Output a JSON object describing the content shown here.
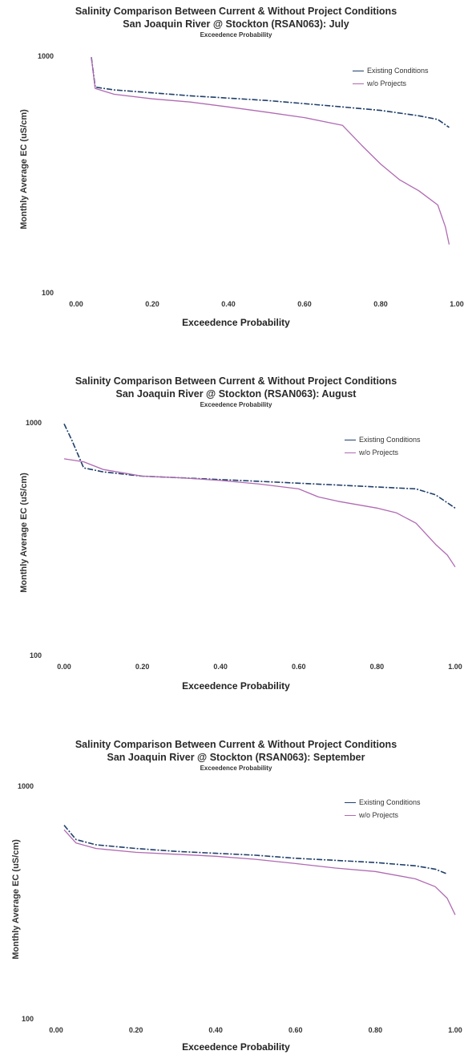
{
  "chart_data": [
    {
      "type": "line",
      "title": "Salinity Comparison Between Current & Without Project Conditions",
      "title2": "San Joaquin River @ Stockton (RSAN063): July",
      "subtitle": "Exceedence Probability",
      "xlabel": "Exceedence Probability",
      "ylabel": "Monthly Average EC (uS/cm)",
      "x_ticks": [
        "0.00",
        "0.20",
        "0.40",
        "0.60",
        "0.80",
        "1.00"
      ],
      "y_ticks": [
        "100",
        "1000"
      ],
      "xlim": [
        0,
        1
      ],
      "ylim": [
        100,
        1000
      ],
      "y_scale": "log",
      "grid": false,
      "legend_position": "top-right",
      "series": [
        {
          "name": "Existing Conditions",
          "color": "#1f3f6b",
          "x": [
            0.04,
            0.05,
            0.1,
            0.2,
            0.3,
            0.4,
            0.5,
            0.6,
            0.7,
            0.8,
            0.9,
            0.95,
            0.98
          ],
          "y": [
            990,
            740,
            720,
            700,
            680,
            665,
            650,
            630,
            610,
            590,
            560,
            540,
            500
          ]
        },
        {
          "name": "w/o Projects",
          "color": "#b06ab3",
          "x": [
            0.04,
            0.05,
            0.1,
            0.2,
            0.3,
            0.4,
            0.5,
            0.6,
            0.7,
            0.75,
            0.8,
            0.85,
            0.9,
            0.95,
            0.97,
            0.98
          ],
          "y": [
            990,
            730,
            690,
            660,
            640,
            610,
            580,
            550,
            510,
            420,
            350,
            300,
            270,
            235,
            190,
            160
          ]
        }
      ]
    },
    {
      "type": "line",
      "title": "Salinity Comparison Between Current & Without Project Conditions",
      "title2": "San Joaquin River @ Stockton (RSAN063): August",
      "subtitle": "Exceedence Probability",
      "xlabel": "Exceedence Probability",
      "ylabel": "Monthly Average EC (uS/cm)",
      "x_ticks": [
        "0.00",
        "0.20",
        "0.40",
        "0.60",
        "0.80",
        "1.00"
      ],
      "y_ticks": [
        "100",
        "1000"
      ],
      "xlim": [
        0,
        1
      ],
      "ylim": [
        100,
        1000
      ],
      "y_scale": "log",
      "grid": false,
      "legend_position": "top-right",
      "series": [
        {
          "name": "Existing Conditions",
          "color": "#1f3f6b",
          "x": [
            0.0,
            0.02,
            0.05,
            0.1,
            0.2,
            0.3,
            0.4,
            0.5,
            0.6,
            0.7,
            0.8,
            0.9,
            0.95,
            1.0
          ],
          "y": [
            990,
            840,
            640,
            615,
            590,
            580,
            570,
            560,
            550,
            540,
            530,
            520,
            490,
            430
          ]
        },
        {
          "name": "w/o Projects",
          "color": "#b06ab3",
          "x": [
            0.0,
            0.05,
            0.1,
            0.2,
            0.3,
            0.4,
            0.5,
            0.6,
            0.65,
            0.7,
            0.8,
            0.85,
            0.9,
            0.95,
            0.98,
            1.0
          ],
          "y": [
            700,
            680,
            630,
            590,
            580,
            565,
            545,
            520,
            480,
            460,
            430,
            410,
            370,
            300,
            270,
            240
          ]
        }
      ]
    },
    {
      "type": "line",
      "title": "Salinity Comparison Between Current & Without Project Conditions",
      "title2": "San Joaquin River @ Stockton (RSAN063): September",
      "subtitle": "Exceedence Probability",
      "xlabel": "Exceedence Probability",
      "ylabel": "Monthly Average EC (uS/cm)",
      "x_ticks": [
        "0.00",
        "0.20",
        "0.40",
        "0.60",
        "0.80",
        "1.00"
      ],
      "y_ticks": [
        "100",
        "1000"
      ],
      "xlim": [
        0,
        1
      ],
      "ylim": [
        100,
        1000
      ],
      "y_scale": "log",
      "grid": false,
      "legend_position": "top-right",
      "series": [
        {
          "name": "Existing Conditions",
          "color": "#1f3f6b",
          "x": [
            0.02,
            0.05,
            0.1,
            0.2,
            0.3,
            0.4,
            0.5,
            0.6,
            0.7,
            0.8,
            0.9,
            0.95,
            0.98
          ],
          "y": [
            680,
            590,
            560,
            540,
            525,
            515,
            505,
            490,
            480,
            470,
            455,
            440,
            420
          ]
        },
        {
          "name": "w/o Projects",
          "color": "#b06ab3",
          "x": [
            0.02,
            0.05,
            0.1,
            0.2,
            0.3,
            0.4,
            0.5,
            0.6,
            0.7,
            0.8,
            0.9,
            0.95,
            0.98,
            1.0
          ],
          "y": [
            650,
            570,
            540,
            520,
            510,
            500,
            485,
            465,
            445,
            430,
            400,
            370,
            330,
            280
          ]
        }
      ]
    }
  ]
}
